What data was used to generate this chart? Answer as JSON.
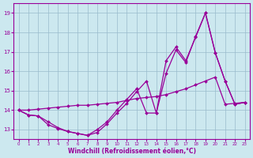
{
  "x": [
    0,
    1,
    2,
    3,
    4,
    5,
    6,
    7,
    8,
    9,
    10,
    11,
    12,
    13,
    14,
    15,
    16,
    17,
    18,
    19,
    20,
    21,
    22,
    23
  ],
  "line1": [
    14.0,
    13.75,
    13.7,
    13.25,
    13.05,
    12.9,
    12.8,
    12.7,
    12.85,
    13.3,
    13.85,
    14.35,
    14.95,
    15.5,
    13.85,
    16.55,
    17.25,
    16.55,
    17.75,
    19.0,
    16.95,
    15.5,
    14.3,
    14.4
  ],
  "line2": [
    14.0,
    13.75,
    13.7,
    13.4,
    13.1,
    12.9,
    12.8,
    12.7,
    13.0,
    13.4,
    14.0,
    14.55,
    15.1,
    13.85,
    13.85,
    15.9,
    17.1,
    16.45,
    17.8,
    19.0,
    16.95,
    15.5,
    14.3,
    14.4
  ],
  "line3": [
    14.0,
    14.0,
    14.05,
    14.1,
    14.15,
    14.2,
    14.25,
    14.25,
    14.3,
    14.35,
    14.4,
    14.5,
    14.6,
    14.65,
    14.7,
    14.8,
    14.95,
    15.1,
    15.3,
    15.5,
    15.7,
    14.3,
    14.35,
    14.4
  ],
  "line_color": "#990099",
  "bg_color": "#cce8ef",
  "grid_color": "#99bbcc",
  "xlabel": "Windchill (Refroidissement éolien,°C)",
  "ylabel_ticks": [
    13,
    14,
    15,
    16,
    17,
    18,
    19
  ],
  "xlim": [
    -0.5,
    23.5
  ],
  "ylim": [
    12.5,
    19.5
  ]
}
